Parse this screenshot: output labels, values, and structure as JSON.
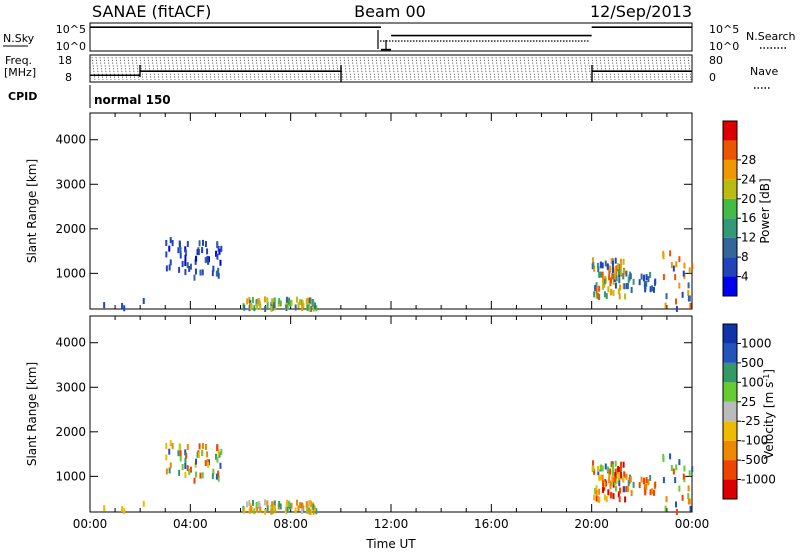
{
  "header": {
    "station": "SANAE (fitACF)",
    "beam": "Beam 00",
    "date": "12/Sep/2013"
  },
  "top_panels": {
    "nsky": {
      "label": "N.Sky",
      "tick_top": "10^5",
      "tick_bottom": "10^0",
      "right_tick_top": "10^5",
      "right_tick_bottom": "10^0",
      "right_label": "N.Search",
      "steps": [
        {
          "x": [
            0.0,
            11.6
          ],
          "level": 0.85
        },
        {
          "x": [
            11.6,
            12.0
          ],
          "level": 0.05
        },
        {
          "x": [
            12.0,
            20.0
          ],
          "level": 0.55
        },
        {
          "x": [
            20.0,
            24.0
          ],
          "level": 0.85
        }
      ]
    },
    "freq": {
      "label_top": "Freq.",
      "label_unit": "[MHz]",
      "tick_top": "18",
      "tick_bottom": "8",
      "right_tick_top": "80",
      "right_tick_bottom": "0",
      "right_label": "Nave",
      "steps": [
        {
          "x": [
            0.0,
            2.0
          ],
          "level": 0.25
        },
        {
          "x": [
            2.0,
            10.0
          ],
          "level": 0.4
        },
        {
          "x": [
            20.0,
            24.0
          ],
          "level": 0.4
        }
      ]
    },
    "cpid": {
      "label": "CPID",
      "value": "normal 150"
    }
  },
  "chart_data": [
    {
      "type": "scatter",
      "name": "power",
      "ylabel": "Slant Range [km]",
      "ylim": [
        200,
        4600
      ],
      "yticks": [
        "1000",
        "2000",
        "3000",
        "4000"
      ],
      "xlim": [
        0,
        24
      ],
      "colorbar": {
        "label": "Power [dB]",
        "colors": [
          "#0000ee",
          "#2244bb",
          "#336699",
          "#339977",
          "#44bb44",
          "#bbbb11",
          "#ee9900",
          "#ee5500",
          "#dd0000"
        ],
        "ticks": [
          "4",
          "8",
          "12",
          "16",
          "20",
          "24",
          "28"
        ]
      },
      "clusters": [
        {
          "x": [
            3.0,
            5.3
          ],
          "y": [
            900,
            1750
          ],
          "count": 55,
          "colors": [
            1,
            1,
            1,
            0,
            2
          ]
        },
        {
          "x": [
            6.0,
            9.0
          ],
          "y": [
            200,
            420
          ],
          "count": 70,
          "colors": [
            2,
            3,
            4,
            5,
            6
          ]
        },
        {
          "x": [
            20.0,
            21.3
          ],
          "y": [
            450,
            1300
          ],
          "count": 80,
          "colors": [
            5,
            6,
            7,
            3,
            2,
            1
          ]
        },
        {
          "x": [
            21.3,
            22.5
          ],
          "y": [
            600,
            1000
          ],
          "count": 25,
          "colors": [
            1,
            2,
            3
          ]
        },
        {
          "x": [
            22.8,
            24.0
          ],
          "y": [
            200,
            1500
          ],
          "count": 25,
          "colors": [
            1,
            2,
            6,
            7
          ]
        },
        {
          "x": [
            0.5,
            2.5
          ],
          "y": [
            200,
            420
          ],
          "count": 4,
          "colors": [
            1
          ]
        }
      ]
    },
    {
      "type": "scatter",
      "name": "velocity",
      "ylabel": "Slant Range [km]",
      "ylim": [
        200,
        4600
      ],
      "yticks": [
        "1000",
        "2000",
        "3000",
        "4000"
      ],
      "xlim": [
        0,
        24
      ],
      "xticks": [
        "00:00",
        "04:00",
        "08:00",
        "12:00",
        "16:00",
        "20:00",
        "00:00"
      ],
      "xlabel": "Time UT",
      "colorbar": {
        "label": "Velocity [m s^-1]",
        "colors": [
          "#dd0000",
          "#ee4400",
          "#ee8800",
          "#eebb00",
          "#bbbbbb",
          "#66cc33",
          "#339966",
          "#2255bb",
          "#1133aa"
        ],
        "ticks": [
          "-1000",
          "-500",
          "-100",
          "-25",
          "25",
          "100",
          "500",
          "1000"
        ]
      },
      "clusters": [
        {
          "x": [
            3.0,
            5.3
          ],
          "y": [
            900,
            1750
          ],
          "count": 55,
          "colors": [
            2,
            3,
            5,
            6,
            7,
            1
          ]
        },
        {
          "x": [
            6.0,
            9.0
          ],
          "y": [
            200,
            420
          ],
          "count": 70,
          "colors": [
            3,
            5,
            6,
            2,
            4
          ]
        },
        {
          "x": [
            20.0,
            21.3
          ],
          "y": [
            450,
            1300
          ],
          "count": 80,
          "colors": [
            0,
            1,
            2,
            3,
            7,
            5
          ]
        },
        {
          "x": [
            21.3,
            22.5
          ],
          "y": [
            600,
            1000
          ],
          "count": 25,
          "colors": [
            1,
            2,
            6
          ]
        },
        {
          "x": [
            22.8,
            24.0
          ],
          "y": [
            200,
            1500
          ],
          "count": 25,
          "colors": [
            1,
            2,
            5,
            7
          ]
        },
        {
          "x": [
            0.5,
            2.5
          ],
          "y": [
            200,
            420
          ],
          "count": 4,
          "colors": [
            3
          ]
        }
      ]
    }
  ]
}
